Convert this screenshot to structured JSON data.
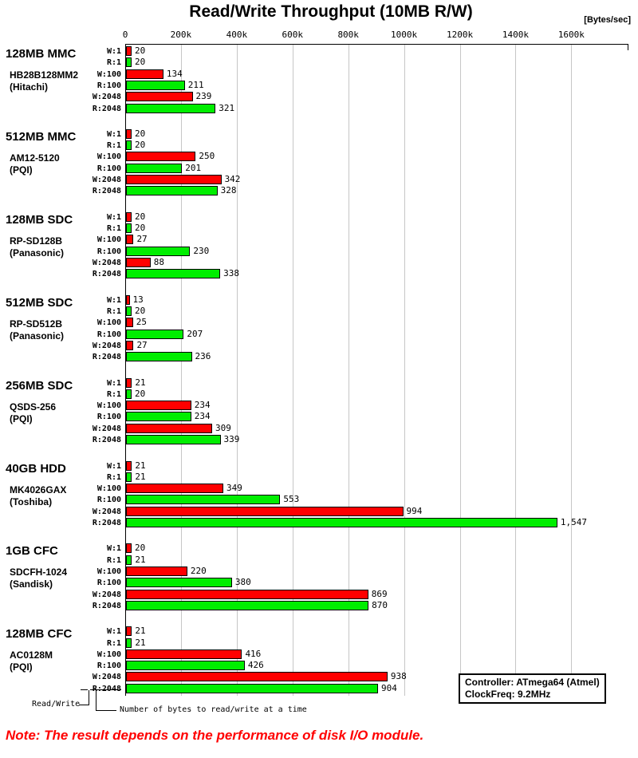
{
  "title": "Read/Write Throughput (10MB R/W)",
  "axis": {
    "unit_label": "[Bytes/sec]",
    "tick_labels": [
      "0",
      "200k",
      "400k",
      "600k",
      "800k",
      "1000k",
      "1200k",
      "1400k",
      "1600k"
    ],
    "tick_values_k": [
      0,
      200,
      400,
      600,
      800,
      1000,
      1200,
      1400,
      1600
    ]
  },
  "legend": {
    "line1": "Controller: ATmega64 (Atmel)",
    "line2": "ClockFreq: 9.2MHz"
  },
  "annotations": {
    "read_write": "Read/Write",
    "bytes_at_time": "Number of bytes to read/write at a time"
  },
  "note": "Note: The result depends on the performance of disk I/O module.",
  "chart_data": {
    "type": "bar",
    "orientation": "horizontal",
    "title": "Read/Write Throughput (10MB R/W)",
    "xlabel": "[Bytes/sec]",
    "x_range_k": [
      0,
      1802
    ],
    "grid": true,
    "bar_categories": [
      "W:1",
      "R:1",
      "W:100",
      "R:100",
      "W:2048",
      "R:2048"
    ],
    "colors": {
      "write": "#ff0000",
      "read": "#00ee00"
    },
    "values_unit": "kBytes/sec",
    "groups": [
      {
        "name": "128MB MMC",
        "model": "HB28B128MM2",
        "maker": "(Hitachi)",
        "values": [
          20,
          20,
          134,
          211,
          239,
          321
        ]
      },
      {
        "name": "512MB MMC",
        "model": "AM12-5120",
        "maker": "(PQI)",
        "values": [
          20,
          20,
          250,
          201,
          342,
          328
        ]
      },
      {
        "name": "128MB SDC",
        "model": "RP-SD128B",
        "maker": "(Panasonic)",
        "values": [
          20,
          20,
          27,
          230,
          88,
          338
        ]
      },
      {
        "name": "512MB SDC",
        "model": "RP-SD512B",
        "maker": "(Panasonic)",
        "values": [
          13,
          20,
          25,
          207,
          27,
          236
        ]
      },
      {
        "name": "256MB SDC",
        "model": "QSDS-256",
        "maker": "(PQI)",
        "values": [
          21,
          20,
          234,
          234,
          309,
          339
        ]
      },
      {
        "name": "40GB HDD",
        "model": "MK4026GAX",
        "maker": "(Toshiba)",
        "values": [
          21,
          21,
          349,
          553,
          994,
          1547
        ]
      },
      {
        "name": "1GB CFC",
        "model": "SDCFH-1024",
        "maker": "(Sandisk)",
        "values": [
          20,
          21,
          220,
          380,
          869,
          870
        ]
      },
      {
        "name": "128MB CFC",
        "model": "AC0128M",
        "maker": "(PQI)",
        "values": [
          21,
          21,
          416,
          426,
          938,
          904
        ]
      }
    ]
  }
}
